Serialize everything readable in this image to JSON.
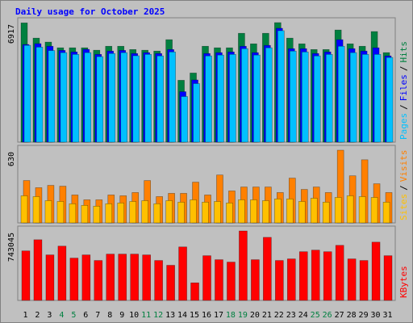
{
  "title": "Daily usage for October 2025",
  "legend_separator": "/",
  "chart_data": [
    {
      "type": "bar",
      "ylim": [
        0,
        6917
      ],
      "yticks": [
        6917
      ],
      "series": [
        {
          "name": "Hits",
          "color": "#008040",
          "values": [
            6900,
            6020,
            5790,
            5460,
            5460,
            5460,
            5320,
            5550,
            5550,
            5360,
            5320,
            5270,
            5930,
            3580,
            4000,
            5550,
            5460,
            5460,
            6300,
            5690,
            6300,
            6917,
            6020,
            5690,
            5360,
            5360,
            6490,
            5690,
            5550,
            6400,
            5180
          ]
        },
        {
          "name": "Files",
          "color": "#0000ff",
          "values": [
            5650,
            5700,
            5550,
            5310,
            5220,
            5370,
            5080,
            5270,
            5310,
            5130,
            5180,
            5130,
            5360,
            2920,
            3600,
            5130,
            5180,
            5220,
            5550,
            5180,
            5600,
            6590,
            5410,
            5410,
            5130,
            5220,
            5930,
            5410,
            5270,
            5460,
            4990
          ]
        },
        {
          "name": "Pages",
          "color": "#00c0ff",
          "values": [
            5600,
            5500,
            5300,
            5180,
            5080,
            5180,
            4950,
            5130,
            5180,
            5000,
            5080,
            4990,
            5220,
            2640,
            3390,
            4990,
            5040,
            5080,
            5410,
            5040,
            5460,
            6450,
            5270,
            5220,
            4990,
            5080,
            5550,
            5180,
            5080,
            5080,
            4900
          ]
        }
      ]
    },
    {
      "type": "bar",
      "ylim": [
        0,
        630
      ],
      "yticks": [
        630
      ],
      "series": [
        {
          "name": "Visits",
          "color": "#ff8000",
          "values": [
            367,
            305,
            325,
            318,
            242,
            200,
            200,
            242,
            235,
            263,
            367,
            228,
            256,
            256,
            353,
            242,
            415,
            277,
            311,
            311,
            311,
            263,
            388,
            290,
            311,
            263,
            630,
            408,
            547,
            339,
            263
          ]
        },
        {
          "name": "Sites",
          "color": "#ffc000",
          "values": [
            235,
            228,
            193,
            186,
            166,
            152,
            145,
            166,
            173,
            186,
            193,
            166,
            193,
            180,
            200,
            180,
            186,
            173,
            200,
            200,
            193,
            208,
            208,
            186,
            214,
            180,
            221,
            235,
            228,
            221,
            180
          ]
        }
      ]
    },
    {
      "type": "bar",
      "ylim": [
        0,
        743045
      ],
      "yticks": [
        743045
      ],
      "categories": [
        "1",
        "2",
        "3",
        "4",
        "5",
        "6",
        "7",
        "8",
        "9",
        "10",
        "11",
        "12",
        "13",
        "14",
        "15",
        "16",
        "17",
        "18",
        "19",
        "20",
        "21",
        "22",
        "23",
        "24",
        "25",
        "26",
        "27",
        "28",
        "29",
        "30",
        "31"
      ],
      "category_colors": [
        "#000000",
        "#000000",
        "#000000",
        "#008040",
        "#008040",
        "#000000",
        "#000000",
        "#000000",
        "#000000",
        "#000000",
        "#008040",
        "#008040",
        "#000000",
        "#000000",
        "#000000",
        "#000000",
        "#000000",
        "#008040",
        "#008040",
        "#000000",
        "#000000",
        "#000000",
        "#000000",
        "#000000",
        "#008040",
        "#008040",
        "#000000",
        "#000000",
        "#000000",
        "#000000",
        "#000000"
      ],
      "series": [
        {
          "name": "KBytes",
          "color": "#ff0000",
          "values": [
            529500,
            649100,
            486800,
            580800,
            452700,
            486800,
            427000,
            495400,
            495400,
            495400,
            486800,
            427000,
            375800,
            572200,
            187900,
            478300,
            435600,
            410000,
            743045,
            435600,
            674700,
            427000,
            444100,
            521000,
            538100,
            521000,
            589300,
            444100,
            427000,
            623500,
            478300
          ]
        }
      ]
    }
  ]
}
